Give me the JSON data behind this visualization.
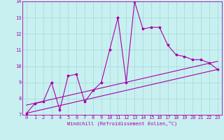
{
  "background_color": "#c8f0f0",
  "grid_color": "#a0d8d8",
  "line_color": "#aa00aa",
  "xlabel": "Windchill (Refroidissement éolien,°C)",
  "xlim": [
    -0.5,
    23.5
  ],
  "ylim": [
    7,
    14
  ],
  "xticks": [
    0,
    1,
    2,
    3,
    4,
    5,
    6,
    7,
    8,
    9,
    10,
    11,
    12,
    13,
    14,
    15,
    16,
    17,
    18,
    19,
    20,
    21,
    22,
    23
  ],
  "yticks": [
    7,
    8,
    9,
    10,
    11,
    12,
    13,
    14
  ],
  "series1": {
    "x": [
      0,
      1,
      2,
      3,
      4,
      5,
      6,
      7,
      8,
      9,
      10,
      11,
      12,
      13,
      14,
      15,
      16,
      17,
      18,
      19,
      20,
      21,
      22,
      23
    ],
    "y": [
      7.1,
      7.7,
      7.8,
      9.0,
      7.3,
      9.4,
      9.5,
      7.8,
      8.5,
      9.0,
      11.0,
      13.0,
      9.0,
      14.0,
      12.3,
      12.4,
      12.4,
      11.3,
      10.7,
      10.6,
      10.4,
      10.4,
      10.2,
      9.8
    ]
  },
  "series2": {
    "x": [
      0,
      23
    ],
    "y": [
      7.1,
      9.8
    ]
  },
  "series3": {
    "x": [
      0,
      23
    ],
    "y": [
      7.6,
      10.3
    ]
  }
}
